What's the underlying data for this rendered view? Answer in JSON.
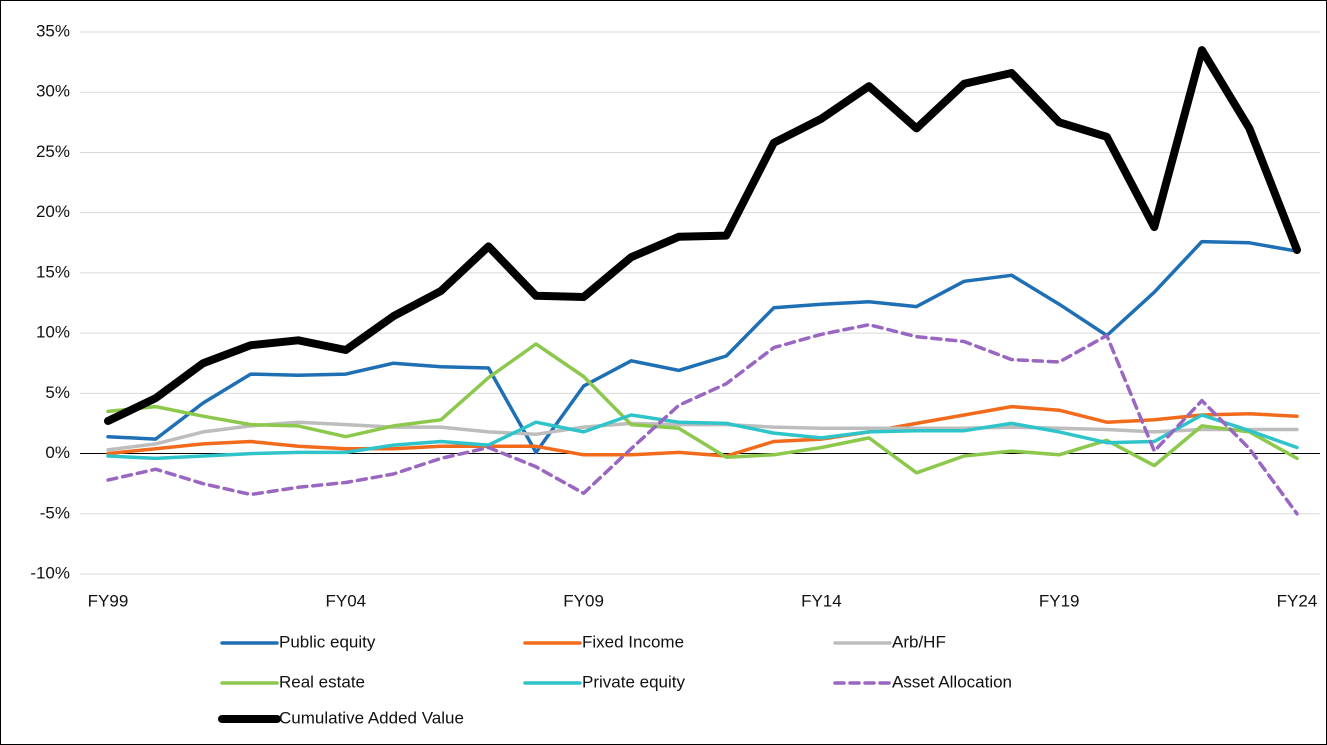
{
  "chart_data": {
    "type": "line",
    "categories": [
      "FY99",
      null,
      null,
      null,
      null,
      "FY04",
      null,
      null,
      null,
      null,
      "FY09",
      null,
      null,
      null,
      null,
      "FY14",
      null,
      null,
      null,
      null,
      "FY19",
      null,
      null,
      null,
      null,
      "FY24"
    ],
    "ylim": [
      -10,
      35
    ],
    "yticks": [
      {
        "value": -10,
        "label": "-10%"
      },
      {
        "value": -5,
        "label": "-5%"
      },
      {
        "value": 0,
        "label": "0%"
      },
      {
        "value": 5,
        "label": "5%"
      },
      {
        "value": 10,
        "label": "10%"
      },
      {
        "value": 15,
        "label": "15%"
      },
      {
        "value": 20,
        "label": "20%"
      },
      {
        "value": 25,
        "label": "25%"
      },
      {
        "value": 30,
        "label": "30%"
      },
      {
        "value": 35,
        "label": "35%"
      }
    ],
    "grid": true,
    "series": [
      {
        "name": "Public equity",
        "color": "#1f6fb5",
        "values": [
          1.4,
          1.2,
          4.2,
          6.6,
          6.5,
          6.6,
          7.5,
          7.2,
          7.1,
          0.1,
          5.6,
          7.7,
          6.9,
          8.1,
          12.1,
          12.4,
          12.6,
          12.2,
          14.3,
          14.8,
          12.4,
          9.8,
          13.4,
          17.6,
          17.5,
          16.8
        ]
      },
      {
        "name": "Fixed Income",
        "color": "#f26b1d",
        "values": [
          0.0,
          0.4,
          0.8,
          1.0,
          0.6,
          0.4,
          0.4,
          0.6,
          0.6,
          0.6,
          -0.1,
          -0.1,
          0.1,
          -0.2,
          1.0,
          1.2,
          1.8,
          2.5,
          3.2,
          3.9,
          3.6,
          2.6,
          2.8,
          3.2,
          3.3,
          3.1
        ]
      },
      {
        "name": "Arb/HF",
        "color": "#bdbdbd",
        "values": [
          0.3,
          0.8,
          1.8,
          2.3,
          2.6,
          2.4,
          2.2,
          2.2,
          1.8,
          1.6,
          2.2,
          2.5,
          2.4,
          2.4,
          2.2,
          2.1,
          2.1,
          2.1,
          2.1,
          2.2,
          2.1,
          2.0,
          1.8,
          2.0,
          2.0,
          2.0
        ]
      },
      {
        "name": "Real estate",
        "color": "#8cc84b",
        "values": [
          3.5,
          3.9,
          3.1,
          2.4,
          2.3,
          1.4,
          2.3,
          2.8,
          6.3,
          9.1,
          6.4,
          2.4,
          2.1,
          -0.3,
          -0.1,
          0.5,
          1.3,
          -1.6,
          -0.2,
          0.2,
          -0.1,
          1.1,
          -1.0,
          2.3,
          1.8,
          -0.4
        ]
      },
      {
        "name": "Private equity",
        "color": "#2ec4c9",
        "values": [
          -0.2,
          -0.4,
          -0.2,
          0.0,
          0.1,
          0.1,
          0.7,
          1.0,
          0.7,
          2.6,
          1.8,
          3.2,
          2.6,
          2.5,
          1.7,
          1.3,
          1.8,
          1.9,
          1.9,
          2.5,
          1.8,
          0.9,
          1.0,
          3.2,
          1.9,
          0.5
        ]
      },
      {
        "name": "Asset Allocation",
        "color": "#9966c2",
        "line_style": "dashed",
        "values": [
          -2.2,
          -1.3,
          -2.5,
          -3.4,
          -2.8,
          -2.4,
          -1.7,
          -0.4,
          0.5,
          -1.1,
          -3.3,
          0.4,
          4.0,
          5.8,
          8.8,
          9.9,
          10.7,
          9.7,
          9.3,
          7.8,
          7.6,
          9.8,
          0.2,
          4.4,
          0.4,
          -5.0
        ]
      },
      {
        "name": "Cumulative Added Value",
        "color": "#000000",
        "line_style": "bold",
        "values": [
          2.7,
          4.6,
          7.5,
          9.0,
          9.4,
          8.6,
          11.4,
          13.5,
          17.2,
          13.1,
          13.0,
          16.3,
          18.0,
          18.1,
          25.8,
          27.8,
          30.5,
          27.0,
          30.7,
          31.6,
          27.5,
          26.3,
          18.8,
          33.5,
          27.0,
          16.9
        ]
      }
    ]
  }
}
